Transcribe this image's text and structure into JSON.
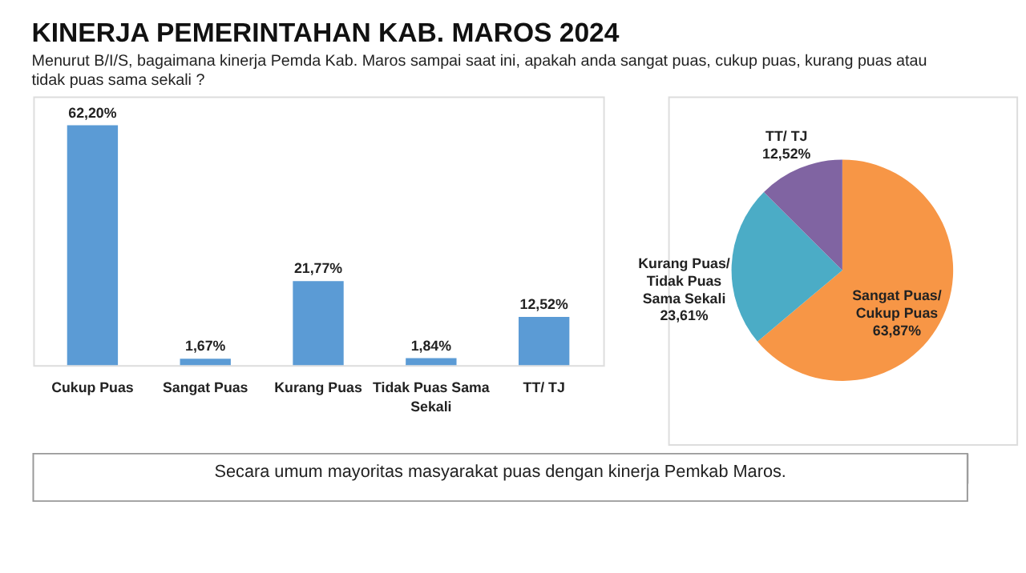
{
  "chart_data": [
    {
      "type": "bar",
      "title": "KINERJA PEMERINTAHAN KAB. MAROS 2024",
      "subtitle": "Menurut B/I/S, bagaimana kinerja Pemda Kab. Maros sampai saat ini, apakah anda sangat puas, cukup puas, kurang puas atau tidak puas sama sekali ?",
      "categories": [
        "Cukup Puas",
        "Sangat Puas",
        "Kurang Puas",
        "Tidak Puas Sama Sekali",
        "TT/ TJ"
      ],
      "values": [
        62.2,
        1.67,
        21.77,
        1.84,
        12.52
      ],
      "value_labels": [
        "62,20%",
        "1,67%",
        "21,77%",
        "1,84%",
        "12,52%"
      ],
      "color": "#5b9bd5",
      "annotations": [
        "Secara umum mayoritas masyarakat puas dengan kinerja Pemkab Maros."
      ]
    },
    {
      "type": "pie",
      "categories": [
        "Sangat Puas/ Cukup Puas",
        "Kurang Puas/ Tidak Puas Sama Sekali",
        "TT/ TJ"
      ],
      "values": [
        63.87,
        23.61,
        12.52
      ],
      "value_labels": [
        "63,87%",
        "23,61%",
        "12,52%"
      ],
      "colors": [
        "#f79646",
        "#4bacc6",
        "#8064a2"
      ]
    }
  ]
}
